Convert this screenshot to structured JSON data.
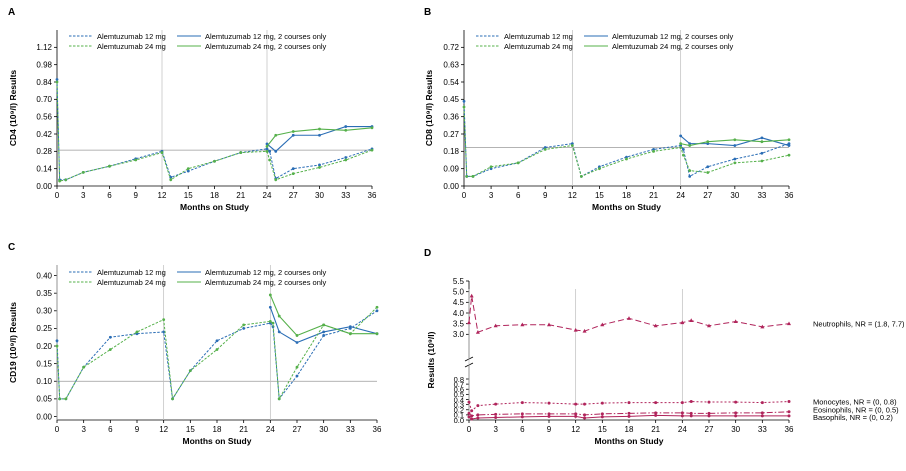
{
  "chart_data": [
    {
      "type": "line",
      "panel_label": "A",
      "xlabel": "Months on Study",
      "ylabel": "CD4 (10⁹/l) Results",
      "xlim": [
        0,
        36
      ],
      "ylim": [
        0,
        1.26
      ],
      "xticks": [
        0,
        3,
        6,
        9,
        12,
        15,
        18,
        21,
        24,
        27,
        30,
        33,
        36
      ],
      "yticks": [
        0.0,
        0.14,
        0.28,
        0.42,
        0.56,
        0.7,
        0.84,
        0.98,
        1.12
      ],
      "ytick_labels": [
        "0.00",
        "0.14",
        "0.28",
        "0.42",
        "0.56",
        "0.70",
        "0.84",
        "0.98",
        "1.12"
      ],
      "reference_line": 0.29,
      "course_lines": [
        12,
        24
      ],
      "legend": {
        "position": "top-left",
        "columns": 2
      },
      "series": [
        {
          "name": "Alemtuzumab 12 mg",
          "color": "#2a6db5",
          "style": "dashed",
          "x": [
            0,
            0.3,
            1,
            3,
            6,
            9,
            12,
            13,
            15,
            18,
            21,
            24,
            24.3,
            25,
            27,
            30,
            33,
            36
          ],
          "y": [
            0.86,
            0.05,
            0.05,
            0.11,
            0.16,
            0.22,
            0.28,
            0.07,
            0.12,
            0.2,
            0.27,
            0.3,
            0.28,
            0.06,
            0.14,
            0.17,
            0.23,
            0.3
          ]
        },
        {
          "name": "Alemtuzumab 12 mg, 2 courses only",
          "color": "#2a6db5",
          "style": "solid",
          "x": [
            24,
            25,
            27,
            30,
            33,
            36
          ],
          "y": [
            0.34,
            0.28,
            0.41,
            0.41,
            0.48,
            0.48
          ]
        },
        {
          "name": "Alemtuzumab 24 mg",
          "color": "#55b04a",
          "style": "dashed",
          "x": [
            0,
            0.3,
            1,
            3,
            6,
            9,
            12,
            13,
            15,
            18,
            21,
            24,
            24.3,
            25,
            27,
            30,
            33,
            36
          ],
          "y": [
            0.84,
            0.04,
            0.05,
            0.11,
            0.16,
            0.21,
            0.27,
            0.05,
            0.14,
            0.2,
            0.27,
            0.28,
            0.21,
            0.05,
            0.1,
            0.15,
            0.21,
            0.29
          ]
        },
        {
          "name": "Alemtuzumab 24 mg, 2 courses only",
          "color": "#55b04a",
          "style": "solid",
          "x": [
            24,
            25,
            27,
            30,
            33,
            36
          ],
          "y": [
            0.32,
            0.41,
            0.44,
            0.46,
            0.45,
            0.47
          ]
        }
      ]
    },
    {
      "type": "line",
      "panel_label": "B",
      "xlabel": "Months on Study",
      "ylabel": "CD8 (10⁹/l) Results",
      "xlim": [
        0,
        36
      ],
      "ylim": [
        0,
        0.81
      ],
      "xticks": [
        0,
        3,
        6,
        9,
        12,
        15,
        18,
        21,
        24,
        27,
        30,
        33,
        36
      ],
      "yticks": [
        0.0,
        0.09,
        0.18,
        0.27,
        0.36,
        0.45,
        0.54,
        0.63,
        0.72
      ],
      "ytick_labels": [
        "0.00",
        "0.09",
        "0.18",
        "0.27",
        "0.36",
        "0.45",
        "0.54",
        "0.63",
        "0.72"
      ],
      "reference_line": 0.2,
      "course_lines": [
        12,
        24
      ],
      "legend": {
        "position": "top-left",
        "columns": 2
      },
      "series": [
        {
          "name": "Alemtuzumab 12 mg",
          "color": "#2a6db5",
          "style": "dashed",
          "x": [
            0,
            0.3,
            1,
            3,
            6,
            9,
            12,
            13,
            15,
            18,
            21,
            24,
            24.3,
            25,
            27,
            30,
            33,
            36
          ],
          "y": [
            0.44,
            0.05,
            0.05,
            0.09,
            0.12,
            0.2,
            0.22,
            0.05,
            0.1,
            0.15,
            0.19,
            0.21,
            0.19,
            0.05,
            0.1,
            0.14,
            0.17,
            0.22
          ]
        },
        {
          "name": "Alemtuzumab 12 mg, 2 courses only",
          "color": "#2a6db5",
          "style": "solid",
          "x": [
            24,
            25,
            27,
            30,
            33,
            36
          ],
          "y": [
            0.26,
            0.22,
            0.22,
            0.21,
            0.25,
            0.21
          ]
        },
        {
          "name": "Alemtuzumab 24 mg",
          "color": "#55b04a",
          "style": "dashed",
          "x": [
            0,
            0.3,
            1,
            3,
            6,
            9,
            12,
            13,
            15,
            18,
            21,
            24,
            24.3,
            25,
            27,
            30,
            33,
            36
          ],
          "y": [
            0.41,
            0.05,
            0.05,
            0.1,
            0.12,
            0.19,
            0.21,
            0.05,
            0.09,
            0.14,
            0.18,
            0.2,
            0.16,
            0.08,
            0.07,
            0.12,
            0.13,
            0.16
          ]
        },
        {
          "name": "Alemtuzumab 24 mg, 2 courses only",
          "color": "#55b04a",
          "style": "solid",
          "x": [
            24,
            25,
            27,
            30,
            33,
            36
          ],
          "y": [
            0.22,
            0.21,
            0.23,
            0.24,
            0.23,
            0.24
          ]
        }
      ]
    },
    {
      "type": "line",
      "panel_label": "C",
      "xlabel": "Months on Study",
      "ylabel": "CD19 (10⁹/l) Results",
      "xlim": [
        0,
        36
      ],
      "ylim": [
        -0.01,
        0.43
      ],
      "xticks": [
        0,
        3,
        6,
        9,
        12,
        15,
        18,
        21,
        24,
        27,
        30,
        33,
        36
      ],
      "yticks": [
        0.0,
        0.05,
        0.1,
        0.15,
        0.2,
        0.25,
        0.3,
        0.35,
        0.4
      ],
      "ytick_labels": [
        "0.00",
        "0.05",
        "0.10",
        "0.15",
        "0.20",
        "0.25",
        "0.30",
        "0.35",
        "0.40"
      ],
      "reference_line": 0.1,
      "course_lines": [
        0,
        12,
        24
      ],
      "legend": {
        "position": "top-left",
        "columns": 2
      },
      "series": [
        {
          "name": "Alemtuzumab 12 mg",
          "color": "#2a6db5",
          "style": "dashed",
          "x": [
            0,
            0.3,
            1,
            3,
            6,
            9,
            12,
            13,
            15,
            18,
            21,
            24,
            24.3,
            25,
            27,
            30,
            33,
            36
          ],
          "y": [
            0.215,
            0.05,
            0.05,
            0.14,
            0.225,
            0.235,
            0.24,
            0.05,
            0.13,
            0.215,
            0.25,
            0.265,
            0.255,
            0.05,
            0.115,
            0.23,
            0.25,
            0.3
          ]
        },
        {
          "name": "Alemtuzumab 12 mg, 2 courses only",
          "color": "#2a6db5",
          "style": "solid",
          "x": [
            24,
            25,
            27,
            30,
            33,
            36
          ],
          "y": [
            0.31,
            0.24,
            0.21,
            0.24,
            0.255,
            0.235
          ]
        },
        {
          "name": "Alemtuzumab 24 mg",
          "color": "#55b04a",
          "style": "dashed",
          "x": [
            0,
            0.3,
            1,
            3,
            6,
            9,
            12,
            13,
            15,
            18,
            21,
            24,
            24.3,
            25,
            27,
            30,
            33,
            36
          ],
          "y": [
            0.2,
            0.05,
            0.05,
            0.14,
            0.19,
            0.24,
            0.275,
            0.05,
            0.13,
            0.19,
            0.26,
            0.27,
            0.265,
            0.05,
            0.14,
            0.26,
            0.235,
            0.31
          ]
        },
        {
          "name": "Alemtuzumab 24 mg, 2 courses only",
          "color": "#55b04a",
          "style": "solid",
          "x": [
            24,
            25,
            27,
            30,
            33,
            36
          ],
          "y": [
            0.345,
            0.285,
            0.23,
            0.26,
            0.235,
            0.235
          ]
        }
      ]
    },
    {
      "type": "line",
      "panel_label": "D",
      "xlabel": "Months on Study",
      "ylabel": "Results (10⁹/l)",
      "xlim": [
        0,
        36
      ],
      "axis_break": {
        "lower_max": 0.8,
        "upper_min": 2.5
      },
      "xticks": [
        0,
        3,
        6,
        9,
        12,
        15,
        18,
        21,
        24,
        27,
        30,
        33,
        36
      ],
      "yticks_lower": [
        0.0,
        0.1,
        0.2,
        0.3,
        0.4,
        0.5,
        0.6,
        0.7,
        0.8
      ],
      "ytick_labels_lower": [
        "0.0",
        "0.1",
        "0.2",
        "0.3",
        "0.4",
        "0.5",
        "0.6",
        "0.7",
        "0.8"
      ],
      "yticks_upper": [
        3.0,
        3.5,
        4.0,
        4.5,
        5.0,
        5.5
      ],
      "ytick_labels_upper": [
        "3.0",
        "3.5",
        "4.0",
        "4.5",
        "5.0",
        "5.5"
      ],
      "course_lines": [
        0,
        12,
        24
      ],
      "color": "#b0245b",
      "series": [
        {
          "name": "Neutrophils, NR = (1.8, 7.7)",
          "style": "long-dashed",
          "marker": "triangle",
          "x": [
            0,
            0.3,
            1,
            3,
            6,
            9,
            12,
            13,
            15,
            18,
            21,
            24,
            25,
            27,
            30,
            33,
            36
          ],
          "y": [
            3.55,
            4.8,
            3.1,
            3.4,
            3.45,
            3.45,
            3.2,
            3.15,
            3.45,
            3.75,
            3.4,
            3.55,
            3.65,
            3.4,
            3.6,
            3.35,
            3.5
          ]
        },
        {
          "name": "Monocytes, NR = (0, 0.8)",
          "style": "short-dashed",
          "marker": "circle",
          "x": [
            0,
            0.3,
            1,
            3,
            6,
            9,
            12,
            13,
            15,
            18,
            21,
            24,
            25,
            27,
            30,
            33,
            36
          ],
          "y": [
            0.35,
            0.18,
            0.28,
            0.31,
            0.34,
            0.33,
            0.31,
            0.31,
            0.33,
            0.34,
            0.34,
            0.34,
            0.36,
            0.35,
            0.35,
            0.34,
            0.36
          ]
        },
        {
          "name": "Eosinophils, NR = (0, 0.5)",
          "style": "dash-dot",
          "marker": "circle",
          "x": [
            0,
            0.3,
            1,
            3,
            6,
            9,
            12,
            13,
            15,
            18,
            21,
            24,
            25,
            27,
            30,
            33,
            36
          ],
          "y": [
            0.13,
            0.08,
            0.1,
            0.11,
            0.12,
            0.12,
            0.12,
            0.1,
            0.12,
            0.13,
            0.14,
            0.14,
            0.13,
            0.13,
            0.14,
            0.14,
            0.16
          ]
        },
        {
          "name": "Basophils, NR = (0, 0.2)",
          "style": "solid",
          "marker": "circle",
          "x": [
            0,
            0.3,
            1,
            3,
            6,
            9,
            12,
            13,
            15,
            18,
            21,
            24,
            25,
            27,
            30,
            33,
            36
          ],
          "y": [
            0.06,
            0.02,
            0.04,
            0.05,
            0.06,
            0.07,
            0.07,
            0.04,
            0.06,
            0.07,
            0.09,
            0.08,
            0.08,
            0.08,
            0.08,
            0.08,
            0.08
          ]
        }
      ]
    }
  ]
}
